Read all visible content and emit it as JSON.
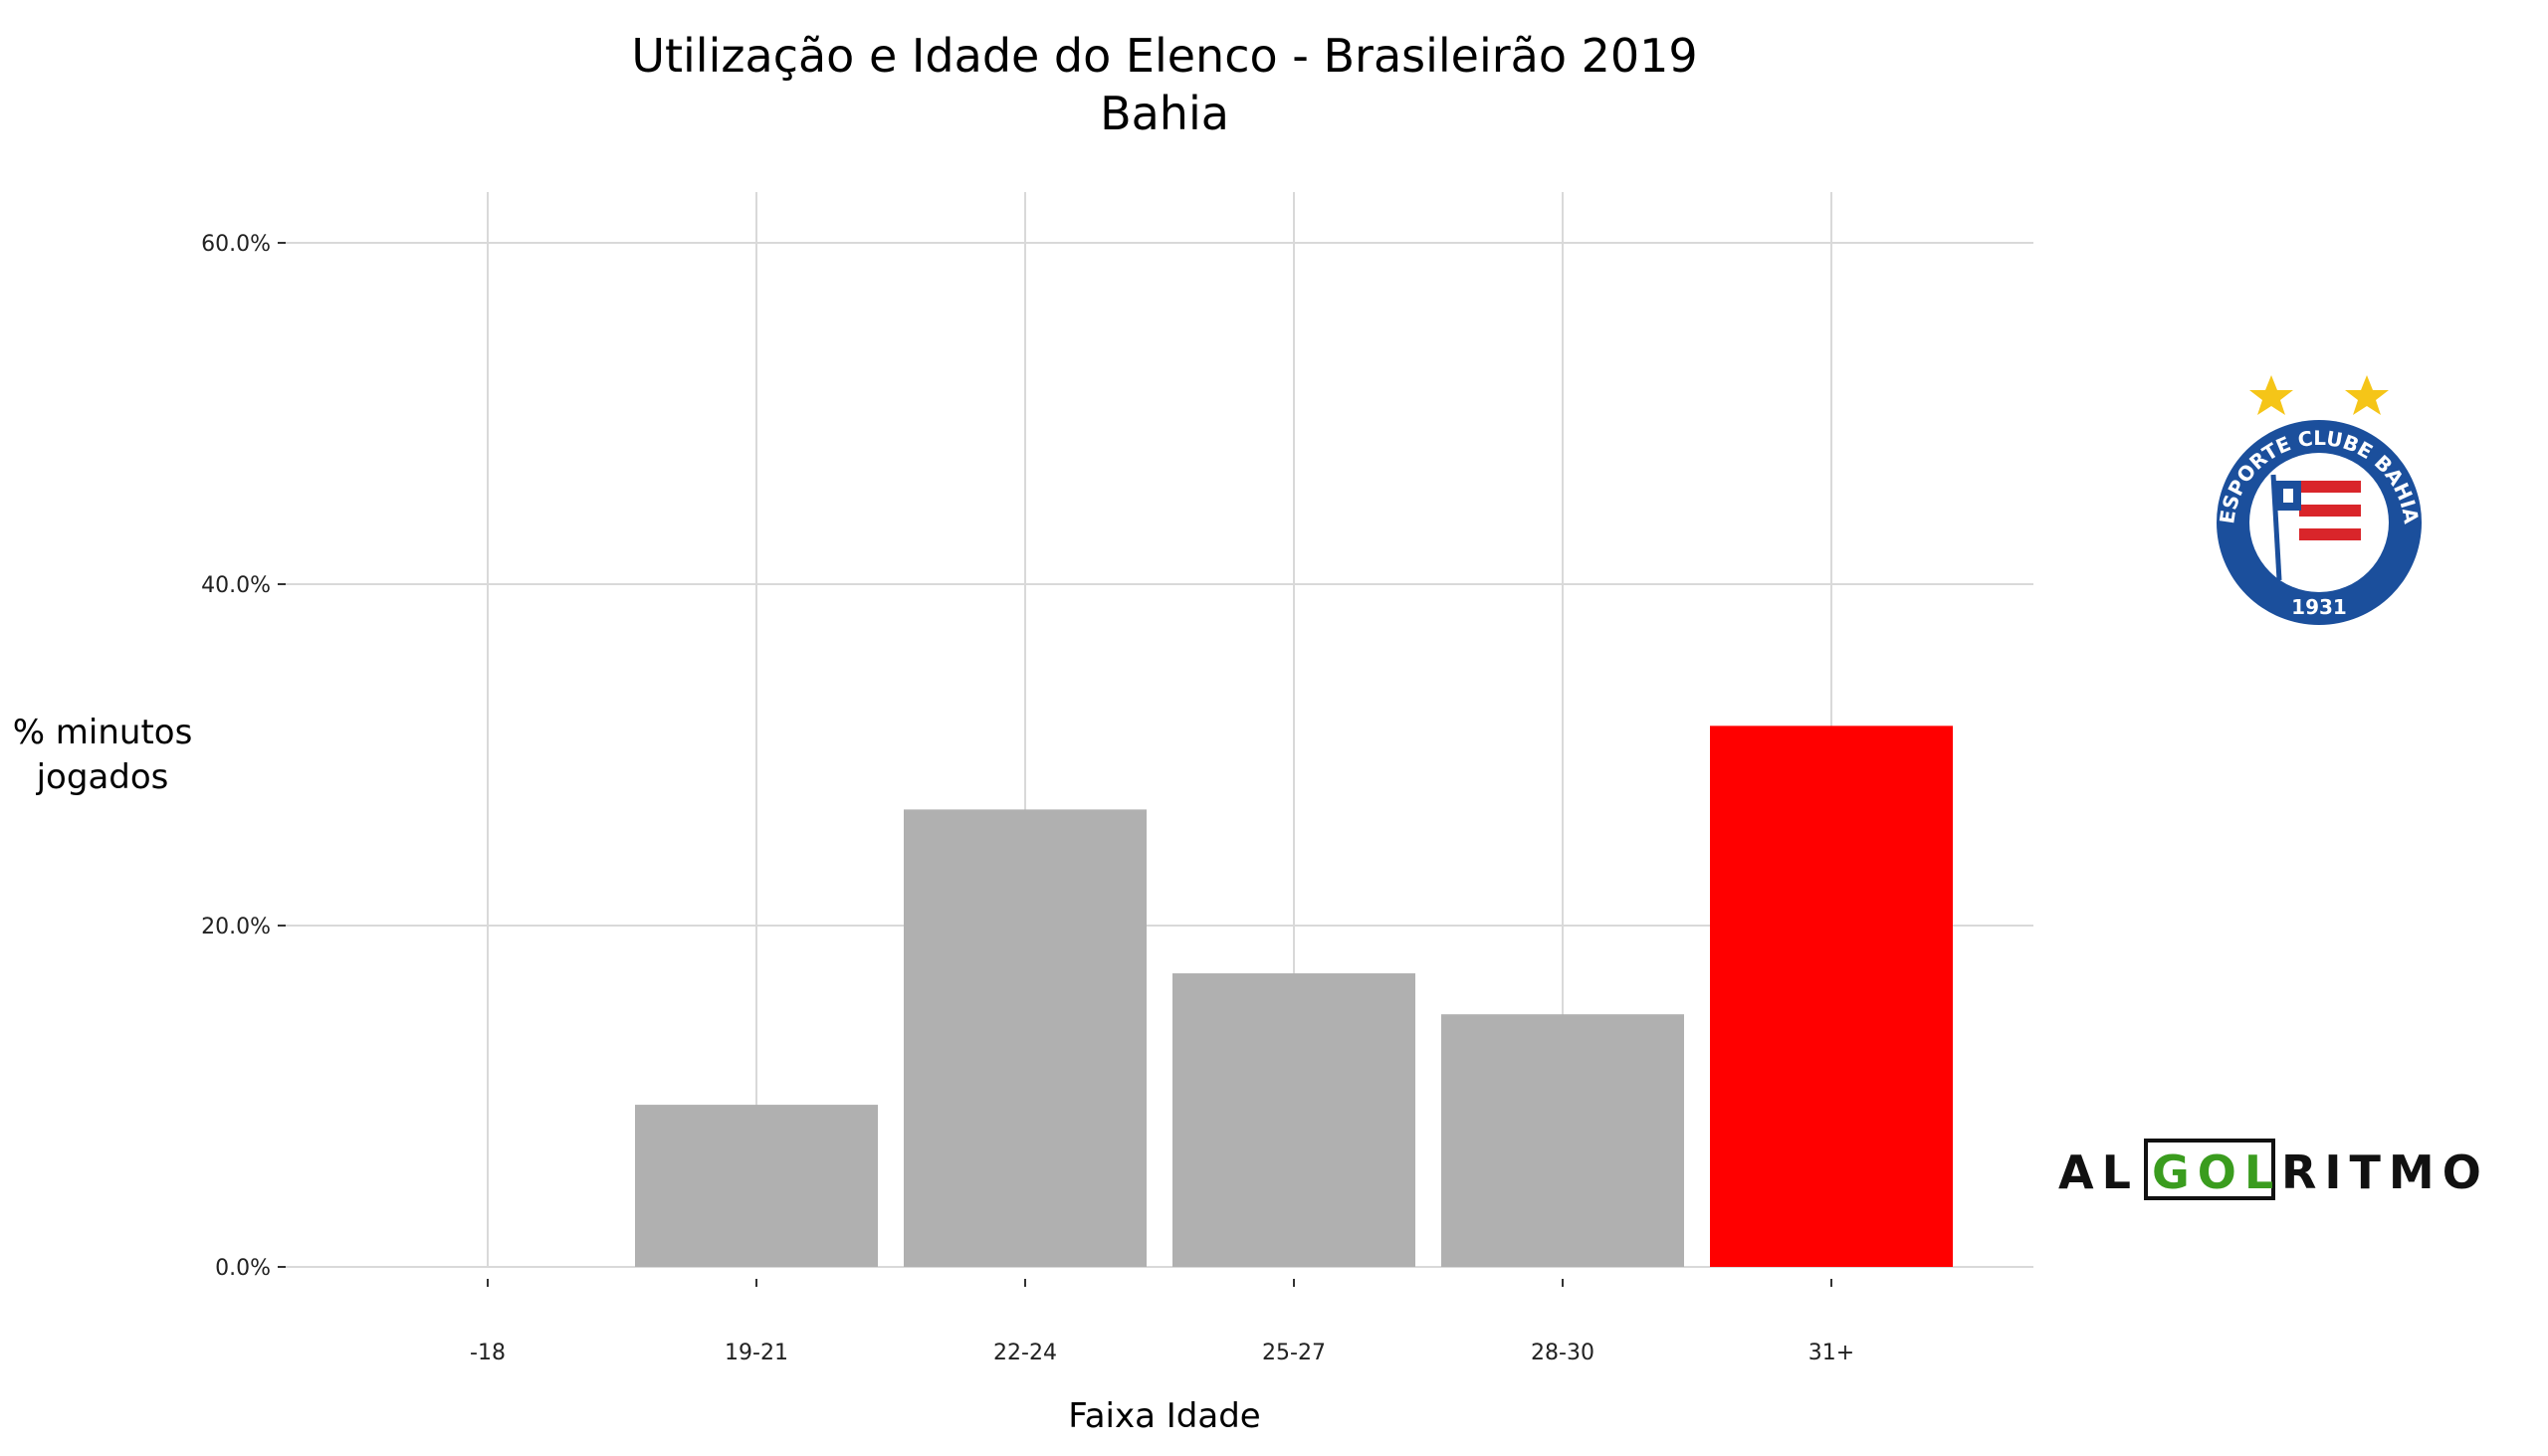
{
  "chart_data": {
    "type": "bar",
    "title": "Utilização e Idade do Elenco - Brasileirão 2019",
    "subtitle": "Bahia",
    "xlabel": "Faixa Idade",
    "ylabel_lines": [
      "% minutos",
      "jogados"
    ],
    "categories": [
      "-18",
      "19-21",
      "22-24",
      "25-27",
      "28-30",
      "31+"
    ],
    "values": [
      0.0,
      9.5,
      26.8,
      17.2,
      14.8,
      31.7
    ],
    "highlight_index": 5,
    "ylim": [
      0,
      60
    ],
    "yticks": [
      0,
      20,
      40,
      60
    ],
    "ytick_labels": [
      "0.0%",
      "20.0%",
      "40.0%",
      "60.0%"
    ],
    "grid": true,
    "colors": {
      "bar": "#b0b0b0",
      "highlight": "#ff0000"
    }
  },
  "logos": {
    "crest": {
      "ring_text": "ESPORTE CLUBE BAHIA",
      "year": "1931",
      "colors": {
        "blue": "#1b4f9c",
        "red": "#d9252a",
        "star": "#f5c518"
      }
    },
    "brand": {
      "left": "AL",
      "middle": "GOL",
      "right": "RITMO",
      "colors": {
        "dark": "#111111",
        "green": "#3a9c1e"
      }
    }
  }
}
